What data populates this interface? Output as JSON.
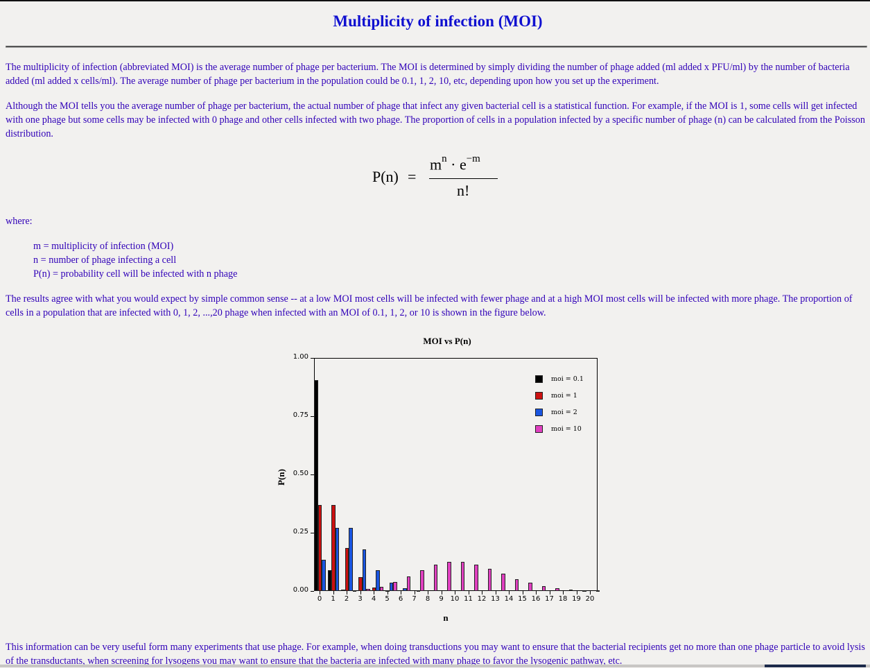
{
  "page": {
    "title": "Multiplicity of infection (MOI)",
    "paragraphs": [
      "The multiplicity of infection (abbreviated MOI) is the average number of phage per bacterium. The MOI is determined by simply dividing the number of phage added (ml added x PFU/ml) by the number of bacteria added (ml added x cells/ml). The average number of phage per bacterium in the population could be 0.1, 1, 2, 10, etc, depending upon how you set up the experiment.",
      "Although the MOI tells you the average number of phage per bacterium, the actual number of phage that infect any given bacterial cell is a statistical function. For example, if the MOI is 1, some cells will get infected with one phage but some cells may be infected with 0 phage and other cells infected with two phage. The proportion of cells in a population infected by a specific number of phage (n) can be calculated from the Poisson distribution.",
      "where:",
      "The results agree with what you would expect by simple common sense -- at a low MOI most cells will be infected with fewer phage and at a high MOI most cells will be infected with more phage. The proportion of cells in a population that are infected with 0, 1, 2, ...,20 phage when infected with an MOI of 0.1, 1, 2, or 10 is shown in the figure below.",
      "This information can be very useful form many experiments that use phage. For example, when doing transductions you may want to ensure that the bacterial recipients get no more than one phage particle to avoid lysis of the transductants, when screening for lysogens you may want to ensure that the bacteria are infected with many phage to favor the lysogenic pathway, etc."
    ],
    "formula": {
      "lhs": "P(n)",
      "eq": "=",
      "num_base1": "m",
      "num_exp1": "n",
      "num_dot": " · e",
      "num_exp2": "−m",
      "denominator": "n!"
    },
    "definitions": [
      "m = multiplicity of infection (MOI)",
      "n = number of phage infecting a cell",
      "P(n) = probability cell will be infected with n phage"
    ]
  },
  "chart_data": {
    "type": "bar",
    "title": "MOI vs P(n)",
    "xlabel": "n",
    "ylabel": "P(n)",
    "ylim": [
      0,
      1
    ],
    "yticks": [
      "1.00",
      "0.75",
      "0.50",
      "0.25",
      "0.00"
    ],
    "categories": [
      "0",
      "1",
      "2",
      "3",
      "4",
      "5",
      "6",
      "7",
      "8",
      "9",
      "10",
      "11",
      "12",
      "13",
      "14",
      "15",
      "16",
      "17",
      "18",
      "19",
      "20"
    ],
    "legend_position": "upper right inside",
    "series": [
      {
        "name": "moi = 0.1",
        "color": "#000000",
        "values": [
          0.905,
          0.09,
          0.005,
          0.0002,
          0,
          0,
          0,
          0,
          0,
          0,
          0,
          0,
          0,
          0,
          0,
          0,
          0,
          0,
          0,
          0,
          0
        ]
      },
      {
        "name": "moi = 1",
        "color": "#cc1111",
        "values": [
          0.368,
          0.368,
          0.184,
          0.061,
          0.015,
          0.003,
          0.0005,
          0,
          0,
          0,
          0,
          0,
          0,
          0,
          0,
          0,
          0,
          0,
          0,
          0,
          0
        ]
      },
      {
        "name": "moi = 2",
        "color": "#1a55e0",
        "values": [
          0.135,
          0.271,
          0.271,
          0.18,
          0.09,
          0.036,
          0.012,
          0.003,
          0.001,
          0,
          0,
          0,
          0,
          0,
          0,
          0,
          0,
          0,
          0,
          0,
          0
        ]
      },
      {
        "name": "moi = 10",
        "color": "#e040c0",
        "values": [
          5e-05,
          0.0005,
          0.002,
          0.008,
          0.019,
          0.038,
          0.063,
          0.09,
          0.113,
          0.125,
          0.125,
          0.114,
          0.095,
          0.073,
          0.052,
          0.035,
          0.022,
          0.013,
          0.007,
          0.004,
          0.002
        ]
      }
    ]
  }
}
